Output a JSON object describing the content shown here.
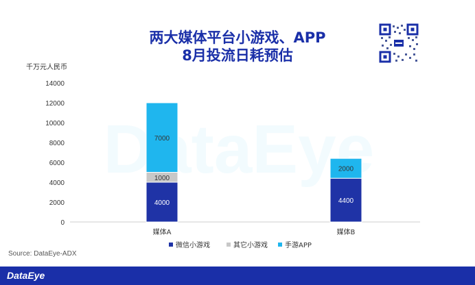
{
  "title_line1": "两大媒体平台小游戏、APP",
  "title_line2": "8月投流日耗预估",
  "source": "Source:  DataEye-ADX",
  "footer_logo": "DataEye",
  "watermark": "DataEye",
  "colors": {
    "brand": "#1a2fa8",
    "series_wechat": "#1f33a6",
    "series_other": "#c8c8c8",
    "series_app": "#1fb6ee"
  },
  "chart_data": {
    "type": "bar",
    "stacked": true,
    "ylabel": "千万元人民币",
    "ylim": [
      0,
      14000
    ],
    "yticks": [
      0,
      2000,
      4000,
      6000,
      8000,
      10000,
      12000,
      14000
    ],
    "categories": [
      "媒体A",
      "媒体B"
    ],
    "series": [
      {
        "name": "微信小游戏",
        "values": [
          4000,
          4400
        ],
        "color": "#1f33a6",
        "label_color": "#ffffff"
      },
      {
        "name": "其它小游戏",
        "values": [
          1000,
          0
        ],
        "color": "#c8c8c8",
        "label_color": "#333333"
      },
      {
        "name": "手游APP",
        "values": [
          7000,
          2000
        ],
        "color": "#1fb6ee",
        "label_color": "#333333"
      }
    ],
    "legend_position": "bottom",
    "grid": false
  }
}
